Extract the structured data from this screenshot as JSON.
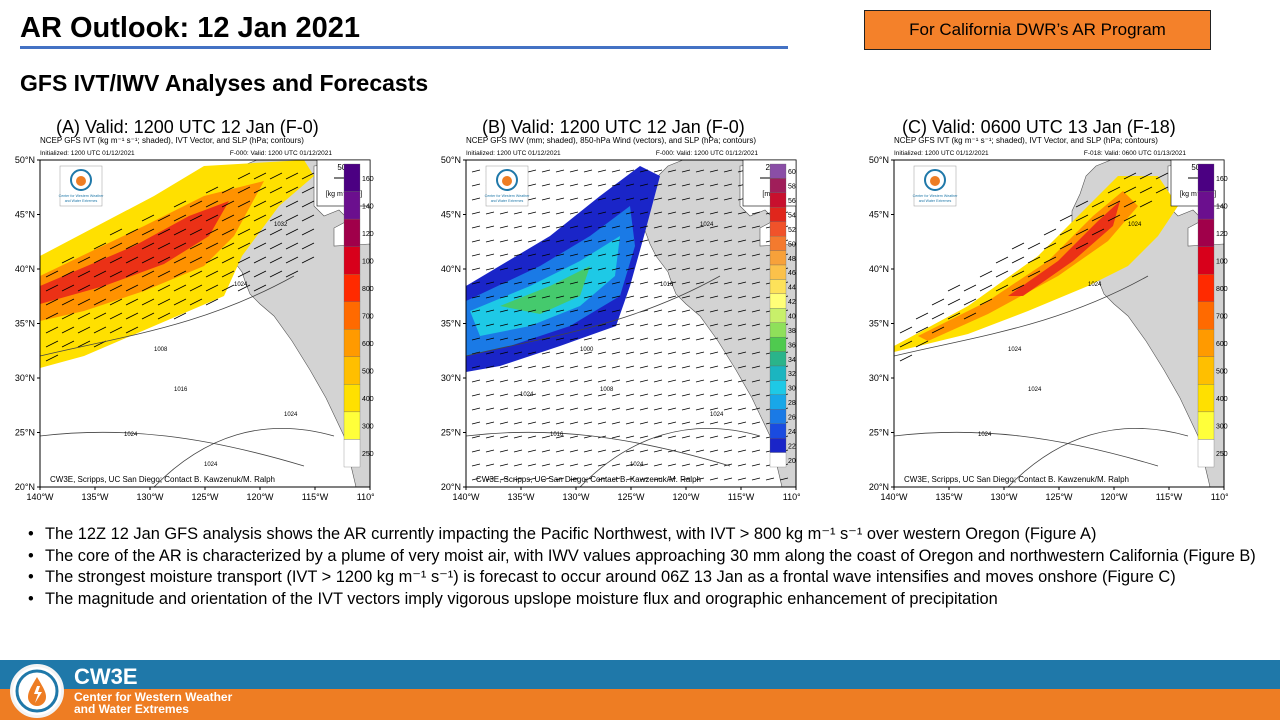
{
  "header": {
    "title": "AR Outlook: 12 Jan 2021",
    "program_badge": "For California DWR’s AR Program",
    "subtitle": "GFS IVT/IWV Analyses and Forecasts"
  },
  "panels": [
    {
      "title": "(A) Valid:  1200 UTC  12 Jan (F-0)",
      "head": "NCEP GFS IVT (kg m⁻¹ s⁻¹; shaded), IVT Vector, and SLP (hPa; contours)",
      "init": "Initialized: 1200 UTC 01/12/2021",
      "valid": "F-000: Valid: 1200 UTC 01/12/2021",
      "credit": "CW3E, Scripps, UC San Diego; Contact B. Kawzenuk/M. Ralph",
      "ref_value": "500",
      "unit": "[kg m⁻¹ s⁻¹]",
      "colorbar_labels": [
        "1600",
        "1400",
        "1200",
        "1000",
        "800",
        "700",
        "600",
        "500",
        "400",
        "300",
        "250"
      ],
      "colorbar_colors": [
        "#4b0082",
        "#6b0f8e",
        "#a0004a",
        "#d8001b",
        "#ff2a00",
        "#ff6a00",
        "#ff9a00",
        "#ffbf00",
        "#ffe000",
        "#ffff3a",
        "#ffffff"
      ],
      "slp_labels": [
        "1008",
        "1016",
        "1024",
        "1032",
        "1024",
        "1024",
        "1024"
      ]
    },
    {
      "title": "(B) Valid:  1200 UTC  12 Jan (F-0)",
      "head": "NCEP GFS IWV (mm; shaded), 850-hPa Wind (vectors), and SLP (hPa; contours)",
      "init": "Initialized: 1200 UTC 01/12/2021",
      "valid": "F-000: Valid: 1200 UTC 01/12/2021",
      "credit": "CW3E, Scripps, UC San Diego; Contact B. Kawzenuk/M. Ralph",
      "ref_value": "20",
      "unit": "[m/s]",
      "colorbar_labels": [
        "60",
        "58",
        "56",
        "54",
        "52",
        "50",
        "48",
        "46",
        "44",
        "42",
        "40",
        "38",
        "36",
        "34",
        "32",
        "30",
        "28",
        "26",
        "24",
        "22",
        "20"
      ],
      "colorbar_colors": [
        "#8a4ea6",
        "#a01e5a",
        "#c8102e",
        "#e0261c",
        "#f0522a",
        "#f47a2e",
        "#f7a13a",
        "#fbc14a",
        "#fde25a",
        "#ffff78",
        "#c8f06a",
        "#8fe05a",
        "#4fca4f",
        "#2ab48a",
        "#1bb5c0",
        "#1ec9e6",
        "#18a7e8",
        "#1a7ae6",
        "#1a4be0",
        "#1a25c8",
        "#ffffff"
      ],
      "slp_labels": [
        "1000",
        "1008",
        "1016",
        "1024",
        "1016",
        "1024",
        "1024",
        "1024"
      ]
    },
    {
      "title": "(C) Valid:  0600 UTC  13 Jan (F-18)",
      "head": "NCEP GFS IVT (kg m⁻¹ s⁻¹; shaded), IVT Vector, and SLP (hPa; contours)",
      "init": "Initialized: 1200 UTC 01/12/2021",
      "valid": "F-018: Valid: 0600 UTC 01/13/2021",
      "credit": "CW3E, Scripps, UC San Diego; Contact B. Kawzenuk/M. Ralph",
      "ref_value": "500",
      "unit": "[kg m⁻¹ s⁻¹]",
      "colorbar_labels": [
        "1600",
        "1400",
        "1200",
        "1000",
        "800",
        "700",
        "600",
        "500",
        "400",
        "300",
        "250"
      ],
      "colorbar_colors": [
        "#4b0082",
        "#6b0f8e",
        "#a0004a",
        "#d8001b",
        "#ff2a00",
        "#ff6a00",
        "#ff9a00",
        "#ffbf00",
        "#ffe000",
        "#ffff3a",
        "#ffffff"
      ],
      "slp_labels": [
        "1024",
        "1024",
        "1024",
        "1024",
        "1024"
      ]
    }
  ],
  "map_axes": {
    "lat_labels": [
      "50°N",
      "45°N",
      "40°N",
      "35°N",
      "30°N",
      "25°N",
      "20°N"
    ],
    "lon_labels": [
      "140°W",
      "135°W",
      "130°W",
      "125°W",
      "120°W",
      "115°W",
      "110°W"
    ]
  },
  "bullets": [
    "The 12Z 12 Jan GFS analysis shows the AR currently impacting the Pacific Northwest, with IVT > 800 kg m⁻¹ s⁻¹ over western Oregon (Figure A)",
    "The core of the AR is characterized by a plume of very moist air, with IWV values approaching 30 mm along the coast of Oregon and northwestern California (Figure B)",
    "The strongest moisture transport (IVT > 1200 kg m⁻¹ s⁻¹) is forecast to occur around 06Z 13 Jan as a frontal wave intensifies and moves onshore (Figure C)",
    "The magnitude and orientation of the IVT vectors imply vigorous upslope moisture flux and orographic enhancement of precipitation"
  ],
  "footer": {
    "name": "CW3E",
    "tagline_1": "Center for Western Weather",
    "tagline_2": "and Water Extremes",
    "colors": {
      "blue": "#1f78a9",
      "orange": "#ee7d23"
    }
  },
  "map_logo_text": [
    "Center for Western Weather",
    "and Water Extremes"
  ]
}
